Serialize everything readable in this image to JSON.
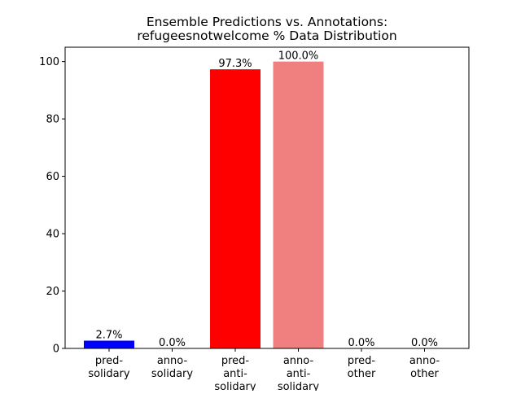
{
  "chart_data": {
    "type": "bar",
    "title": [
      "Ensemble Predictions vs. Annotations:",
      "refugeesnotwelcome % Data Distribution"
    ],
    "xlabel": "",
    "ylabel": "",
    "ylim": [
      0,
      105
    ],
    "yticks": [
      0,
      20,
      40,
      60,
      80,
      100
    ],
    "grid": false,
    "categories": [
      [
        "pred-",
        "solidary"
      ],
      [
        "anno-",
        "solidary"
      ],
      [
        "pred-",
        "anti-",
        "solidary"
      ],
      [
        "anno-",
        "anti-",
        "solidary"
      ],
      [
        "pred-",
        "other"
      ],
      [
        "anno-",
        "other"
      ]
    ],
    "values": [
      2.7,
      0.0,
      97.3,
      100.0,
      0.0,
      0.0
    ],
    "value_labels": [
      "2.7%",
      "0.0%",
      "97.3%",
      "100.0%",
      "0.0%",
      "0.0%"
    ],
    "colors": [
      "#0000ff",
      "#0000ff",
      "#ff0000",
      "#f08080",
      "#808080",
      "#808080"
    ]
  }
}
